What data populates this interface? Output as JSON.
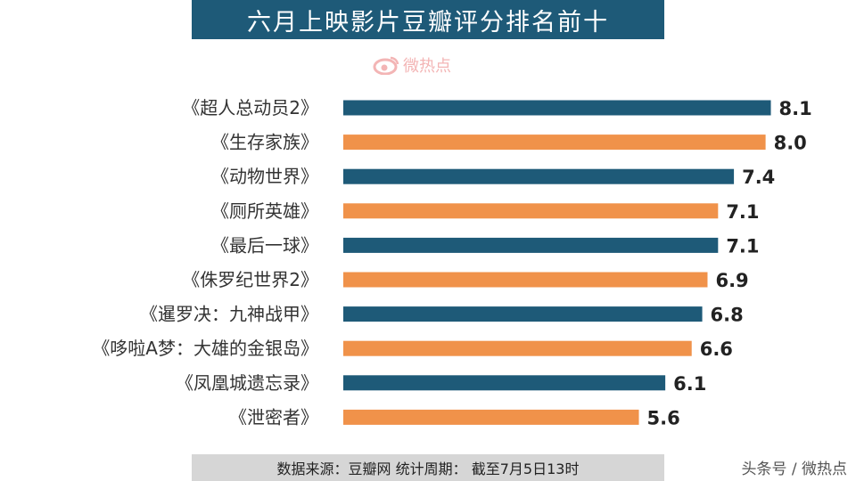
{
  "watermark": {
    "text": "微热点",
    "icon": "weibo-eye-icon"
  },
  "footer": {
    "source": "数据来源：豆瓣网   统计周期：  截至7月5日13时"
  },
  "credit": "头条号 / 微热点",
  "colors": {
    "title_bg": "#1e5a78",
    "dark_bar": "#1e5a78",
    "orange_bar": "#f0924a",
    "footer_bg": "#d6d6d6"
  },
  "chart_data": {
    "type": "bar",
    "orientation": "horizontal",
    "title": "六月上映影片豆瓣评分排名前十",
    "categories": [
      "《超人总动员2》",
      "《生存家族》",
      "《动物世界》",
      "《厕所英雄》",
      "《最后一球》",
      "《侏罗纪世界2》",
      "《暹罗决：九神战甲》",
      "《哆啦A梦：大雄的金银岛》",
      "《凤凰城遗忘录》",
      "《泄密者》"
    ],
    "values": [
      8.1,
      8.0,
      7.4,
      7.1,
      7.1,
      6.9,
      6.8,
      6.6,
      6.1,
      5.6
    ],
    "value_labels": [
      "8.1",
      "8.0",
      "7.4",
      "7.1",
      "7.1",
      "6.9",
      "6.8",
      "6.6",
      "6.1",
      "5.6"
    ],
    "bar_colors": [
      "#1e5a78",
      "#f0924a",
      "#1e5a78",
      "#f0924a",
      "#1e5a78",
      "#f0924a",
      "#1e5a78",
      "#f0924a",
      "#1e5a78",
      "#f0924a"
    ],
    "xlabel": "",
    "ylabel": "",
    "grid": false,
    "legend": "none"
  }
}
